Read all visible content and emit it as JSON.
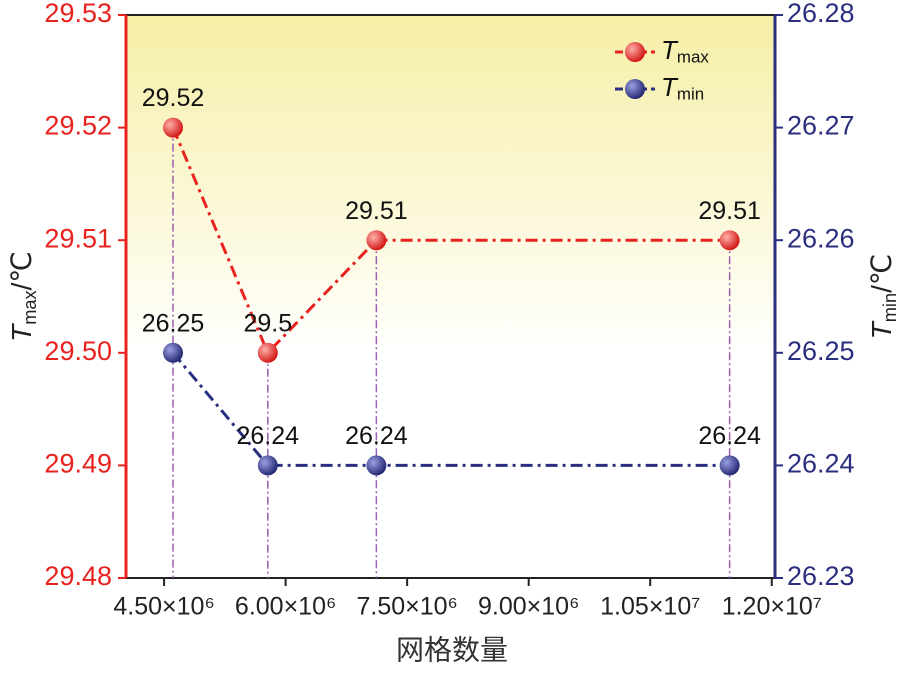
{
  "chart_data": {
    "type": "line",
    "x_label": "网格数量",
    "y_label": "Tmax/℃",
    "y2_label": "Tmin/℃",
    "x": [
      4610000,
      5780000,
      7120000,
      11480000
    ],
    "xlim": [
      4030000,
      12040000
    ],
    "xticks": [
      {
        "value": 4500000,
        "label": "4.50×10⁶"
      },
      {
        "value": 6000000,
        "label": "6.00×10⁶"
      },
      {
        "value": 7500000,
        "label": "7.50×10⁶"
      },
      {
        "value": 9000000,
        "label": "9.00×10⁶"
      },
      {
        "value": 10500000,
        "label": "1.05×10⁷"
      },
      {
        "value": 12000000,
        "label": "1.20×10⁷"
      }
    ],
    "ylim": [
      29.48,
      29.53
    ],
    "yticks": [
      29.48,
      29.49,
      {
        "value": 29.5,
        "label": "29.50"
      },
      29.51,
      29.52,
      29.53
    ],
    "y2lim": [
      26.23,
      26.28
    ],
    "y2ticks": [
      26.23,
      26.24,
      26.25,
      26.26,
      26.27,
      26.28
    ],
    "legend": "upper right",
    "series": [
      {
        "name": "Tmax",
        "color": "#e8231f",
        "axis": "y",
        "values": [
          29.52,
          29.5,
          29.51,
          29.51
        ]
      },
      {
        "name": "Tmin",
        "color": "#2b2f7f",
        "axis": "y2",
        "values": [
          26.25,
          26.24,
          26.24,
          26.24
        ]
      }
    ]
  }
}
